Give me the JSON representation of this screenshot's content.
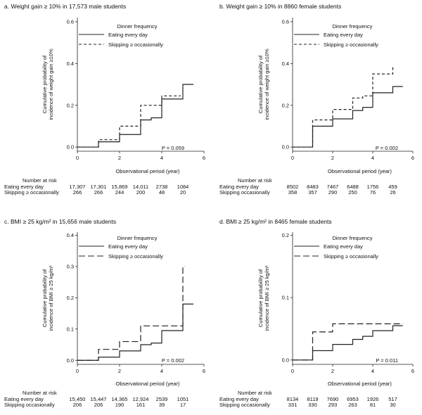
{
  "chart_data": [
    {
      "type": "line",
      "title": "a. Weight gain ≥ 10% in 17,573 male students",
      "xlabel": "Observational period (year)",
      "ylabel": [
        "Cumulative probability of",
        "incidence of weight gain ≥10%"
      ],
      "xlim": [
        0,
        6
      ],
      "ylim": [
        -0.02,
        0.62
      ],
      "x_ticks": [
        0,
        2,
        4,
        6
      ],
      "y_ticks": [
        0.0,
        0.2,
        0.4,
        0.6
      ],
      "y_tick_labels": [
        "0.0",
        "0.2",
        "0.4",
        "0.6"
      ],
      "legend_title": "Dinner frequency",
      "legend_position": "top-right",
      "series": [
        {
          "name": "Eating every day",
          "dash": "solid",
          "steps": [
            [
              0,
              0.0
            ],
            [
              1,
              0.025
            ],
            [
              2,
              0.06
            ],
            [
              3,
              0.13
            ],
            [
              3.5,
              0.14
            ],
            [
              4,
              0.23
            ],
            [
              5,
              0.3
            ],
            [
              5.5,
              0.3
            ]
          ]
        },
        {
          "name": "Skipping ≥ occasionally",
          "dash": "short",
          "steps": [
            [
              0,
              0.0
            ],
            [
              1,
              0.035
            ],
            [
              2,
              0.1
            ],
            [
              3,
              0.2
            ],
            [
              4,
              0.245
            ],
            [
              4.9,
              0.245
            ]
          ]
        }
      ],
      "p_value": "P = 0.059",
      "risk_table": {
        "title": "Number at risk",
        "rows": [
          {
            "label": "Eating every day",
            "values": [
              "17,307",
              "17,301",
              "15,869",
              "14,011",
              "2738",
              "1084"
            ]
          },
          {
            "label": "Skipping ≥ occasionally",
            "values": [
              "266",
              "266",
              "244",
              "200",
              "48",
              "20"
            ]
          }
        ]
      }
    },
    {
      "type": "line",
      "title": "b. Weight gain ≥ 10% in 8860 female students",
      "xlabel": "Observational period (year)",
      "ylabel": [
        "Cumulative probability of",
        "incidence of weight gain ≥10%"
      ],
      "xlim": [
        0,
        6
      ],
      "ylim": [
        -0.02,
        0.62
      ],
      "x_ticks": [
        0,
        2,
        4,
        6
      ],
      "y_ticks": [
        0.0,
        0.2,
        0.4,
        0.6
      ],
      "y_tick_labels": [
        "0.0",
        "0.2",
        "0.4",
        "0.6"
      ],
      "legend_title": "Dinner frequency",
      "legend_position": "top-right",
      "series": [
        {
          "name": "Eating every day",
          "dash": "solid",
          "steps": [
            [
              0,
              0.0
            ],
            [
              1,
              0.1
            ],
            [
              2,
              0.135
            ],
            [
              3,
              0.175
            ],
            [
              3.5,
              0.19
            ],
            [
              4,
              0.26
            ],
            [
              4.5,
              0.26
            ],
            [
              5,
              0.29
            ],
            [
              5.5,
              0.29
            ]
          ]
        },
        {
          "name": "Skipping ≥ occasionally",
          "dash": "short",
          "steps": [
            [
              0,
              0.0
            ],
            [
              1,
              0.13
            ],
            [
              2,
              0.18
            ],
            [
              3,
              0.235
            ],
            [
              3.5,
              0.245
            ],
            [
              4,
              0.35
            ],
            [
              5,
              0.38
            ],
            [
              5.1,
              0.38
            ]
          ]
        }
      ],
      "p_value": "P = 0.002",
      "risk_table": {
        "title": "Number at risk",
        "rows": [
          {
            "label": "Eating every day",
            "values": [
              "8502",
              "8483",
              "7467",
              "6488",
              "1756",
              "459"
            ]
          },
          {
            "label": "Skipping occasionally",
            "values": [
              "358",
              "357",
              "290",
              "250",
              "76",
              "26"
            ]
          }
        ]
      }
    },
    {
      "type": "line",
      "title": "c. BMI ≥ 25 kg/m² in 15,656 male students",
      "xlabel": "Observational period (year)",
      "ylabel": [
        "Cumulative probability of",
        "incidence of BMI ≥ 25 kg/m²"
      ],
      "xlim": [
        0,
        6
      ],
      "ylim": [
        -0.013,
        0.41
      ],
      "x_ticks": [
        0,
        2,
        4,
        6
      ],
      "y_ticks": [
        0.0,
        0.1,
        0.2,
        0.3,
        0.4
      ],
      "y_tick_labels": [
        "0.0",
        "0.1",
        "0.2",
        "0.3",
        "0.4"
      ],
      "legend_title": "Dinner frequency",
      "legend_position": "top-right",
      "series": [
        {
          "name": "Eating every day",
          "dash": "solid",
          "steps": [
            [
              0,
              0.0
            ],
            [
              1,
              0.01
            ],
            [
              2,
              0.03
            ],
            [
              3,
              0.05
            ],
            [
              3.5,
              0.055
            ],
            [
              4,
              0.095
            ],
            [
              5,
              0.18
            ],
            [
              5.5,
              0.18
            ]
          ]
        },
        {
          "name": "Skipping ≥ occasionally",
          "dash": "long",
          "steps": [
            [
              0,
              0.0
            ],
            [
              1,
              0.035
            ],
            [
              2,
              0.06
            ],
            [
              3,
              0.11
            ],
            [
              5,
              0.3
            ],
            [
              5.1,
              0.3
            ]
          ]
        }
      ],
      "p_value": "P = 0.002",
      "risk_table": {
        "title": "Number at risk",
        "rows": [
          {
            "label": "Eating every day",
            "values": [
              "15,450",
              "15,447",
              "14,365",
              "12,924",
              "2539",
              "1051"
            ]
          },
          {
            "label": "Skipping occasionally",
            "values": [
              "206",
              "206",
              "190",
              "161",
              "39",
              "17"
            ]
          }
        ]
      }
    },
    {
      "type": "line",
      "title": "d. BMI ≥ 25 kg/m² in 8465 female students",
      "xlabel": "Observational period (year)",
      "ylabel": [
        "Cumulative probability of",
        "incidence of BMI ≥ 25 kg/m²"
      ],
      "xlim": [
        0,
        6
      ],
      "ylim": [
        -0.007,
        0.205
      ],
      "x_ticks": [
        0,
        2,
        4,
        6
      ],
      "y_ticks": [
        0.0,
        0.1,
        0.2
      ],
      "y_tick_labels": [
        "0.0",
        "0.1",
        "0.2"
      ],
      "legend_title": "Dinner frequency",
      "legend_position": "top-right",
      "series": [
        {
          "name": "Eating every day",
          "dash": "solid",
          "steps": [
            [
              0,
              0.0
            ],
            [
              1,
              0.015
            ],
            [
              2,
              0.025
            ],
            [
              3,
              0.033
            ],
            [
              3.5,
              0.038
            ],
            [
              4,
              0.047
            ],
            [
              5,
              0.055
            ],
            [
              5.5,
              0.055
            ]
          ]
        },
        {
          "name": "Skipping ≥ occasionally",
          "dash": "long",
          "steps": [
            [
              0,
              0.0
            ],
            [
              1,
              0.045
            ],
            [
              2,
              0.058
            ],
            [
              5,
              0.058
            ],
            [
              5.5,
              0.058
            ]
          ]
        }
      ],
      "p_value": "P = 0.011",
      "risk_table": {
        "title": "Number at risk",
        "rows": [
          {
            "label": "Eating every day",
            "values": [
              "8134",
              "8119",
              "7690",
              "6953",
              "1926",
              "517"
            ]
          },
          {
            "label": "Skipping occasionally",
            "values": [
              "331",
              "330",
              "293",
              "263",
              "81",
              "30"
            ]
          }
        ]
      }
    }
  ]
}
